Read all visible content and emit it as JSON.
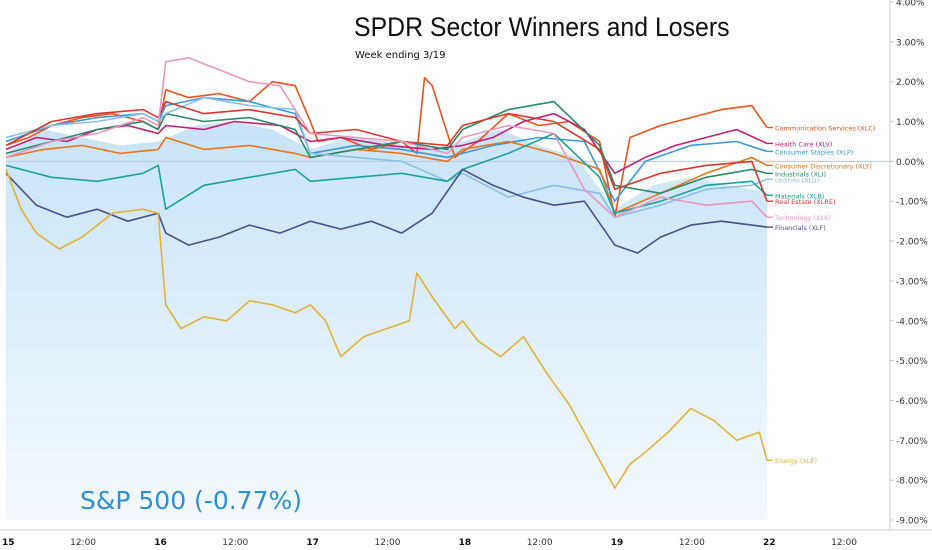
{
  "chart_data": {
    "type": "line",
    "title": "SPDR Sector Winners and Losers",
    "subtitle": "Week ending 3/19",
    "annotation": "S&P 500 (-0.77%)",
    "x_ticks": [
      "15",
      "12:00",
      "16",
      "12:00",
      "17",
      "12:00",
      "18",
      "12:00",
      "19",
      "12:00",
      "22",
      "12:00"
    ],
    "y_ticks": [
      "4.00%",
      "3.00%",
      "2.00%",
      "1.00%",
      "0.00%",
      "-1.00%",
      "-2.00%",
      "-3.00%",
      "-4.00%",
      "-5.00%",
      "-6.00%",
      "-7.00%",
      "-8.00%",
      "-9.00%"
    ],
    "ylim": [
      -9.0,
      4.0
    ],
    "x_range": [
      0,
      7
    ],
    "area_series": {
      "name": "S&P 500",
      "x": [
        0,
        0.25,
        0.5,
        0.75,
        1.0,
        1.25,
        1.5,
        1.75,
        2.0,
        2.25,
        2.5,
        2.75,
        3.0,
        3.25,
        3.5,
        3.75,
        4.0,
        4.25,
        4.5,
        4.75,
        5.0
      ],
      "values": [
        0.2,
        0.8,
        0.6,
        0.4,
        0.5,
        0.9,
        1.0,
        0.8,
        0.3,
        0.6,
        0.5,
        0.3,
        0.5,
        0.8,
        0.4,
        0.1,
        -1.2,
        -0.6,
        -0.4,
        -0.6,
        -0.77
      ],
      "color": "#9ccdf0"
    },
    "series": [
      {
        "name": "Communication Services (XLC)",
        "color": "#e8541e",
        "end": 0.85,
        "x": [
          0,
          0.15,
          0.3,
          0.5,
          0.7,
          0.9,
          1.0,
          1.05,
          1.2,
          1.4,
          1.6,
          1.75,
          1.9,
          2.0,
          2.05,
          2.2,
          2.4,
          2.6,
          2.7,
          2.75,
          2.8,
          2.95,
          3.1,
          3.3,
          3.5,
          3.7,
          3.9,
          4.0,
          4.1,
          4.3,
          4.5,
          4.7,
          4.9,
          5.0
        ],
        "values": [
          0.4,
          0.6,
          0.9,
          1.1,
          1.2,
          1.0,
          0.8,
          1.8,
          1.6,
          1.7,
          1.5,
          2.0,
          1.9,
          1.0,
          0.5,
          0.6,
          0.3,
          0.5,
          0.2,
          2.1,
          1.9,
          0.1,
          0.5,
          1.2,
          0.9,
          1.0,
          0.5,
          -1.4,
          0.6,
          0.9,
          1.1,
          1.3,
          1.4,
          0.85
        ]
      },
      {
        "name": "Health Care (XLV)",
        "color": "#c41e72",
        "end": 0.45,
        "x": [
          0,
          0.2,
          0.4,
          0.6,
          0.8,
          1.0,
          1.05,
          1.3,
          1.5,
          1.8,
          2.0,
          2.2,
          2.5,
          2.8,
          3.0,
          3.2,
          3.4,
          3.6,
          3.8,
          4.0,
          4.2,
          4.4,
          4.6,
          4.8,
          5.0
        ],
        "values": [
          0.3,
          0.6,
          0.5,
          0.8,
          0.9,
          0.7,
          0.9,
          0.8,
          1.0,
          0.9,
          0.5,
          0.6,
          0.4,
          0.3,
          0.4,
          0.6,
          1.0,
          1.2,
          0.8,
          -0.3,
          0.1,
          0.4,
          0.6,
          0.8,
          0.45
        ]
      },
      {
        "name": "Consumer Staples (XLP)",
        "color": "#3a9ad9",
        "end": 0.25,
        "x": [
          0,
          0.3,
          0.6,
          0.9,
          1.0,
          1.05,
          1.3,
          1.6,
          1.9,
          2.0,
          2.3,
          2.6,
          2.9,
          3.0,
          3.2,
          3.5,
          3.8,
          4.0,
          4.2,
          4.5,
          4.8,
          5.0
        ],
        "values": [
          0.5,
          0.9,
          1.1,
          1.2,
          1.0,
          1.4,
          1.6,
          1.5,
          1.2,
          0.2,
          0.4,
          0.3,
          0.1,
          0.2,
          0.4,
          0.6,
          0.5,
          -1.0,
          0.0,
          0.4,
          0.5,
          0.25
        ]
      },
      {
        "name": "Consumer Discretionary (XLY)",
        "color": "#e8741e",
        "end": -0.1,
        "x": [
          0,
          0.25,
          0.5,
          0.75,
          1.0,
          1.05,
          1.3,
          1.6,
          1.9,
          2.0,
          2.3,
          2.6,
          2.9,
          3.0,
          3.3,
          3.6,
          3.9,
          4.0,
          4.3,
          4.6,
          4.9,
          5.0
        ],
        "values": [
          0.1,
          0.3,
          0.4,
          0.2,
          0.3,
          0.6,
          0.3,
          0.4,
          0.2,
          0.1,
          0.3,
          0.2,
          0.0,
          0.3,
          0.5,
          0.2,
          -0.2,
          -1.3,
          -0.8,
          -0.3,
          0.1,
          -0.1
        ]
      },
      {
        "name": "Industrials (XLI)",
        "color": "#2a8a6a",
        "end": -0.3,
        "x": [
          0,
          0.3,
          0.6,
          0.9,
          1.0,
          1.05,
          1.3,
          1.6,
          1.9,
          2.0,
          2.3,
          2.6,
          2.9,
          3.0,
          3.3,
          3.6,
          3.9,
          4.0,
          4.3,
          4.6,
          4.9,
          5.0
        ],
        "values": [
          0.2,
          0.5,
          0.8,
          1.0,
          0.8,
          1.2,
          1.0,
          1.1,
          0.8,
          0.1,
          0.3,
          0.5,
          0.3,
          0.8,
          1.3,
          1.5,
          0.4,
          -0.6,
          -0.8,
          -0.4,
          -0.2,
          -0.3
        ]
      },
      {
        "name": "Utilities (XLU)",
        "color": "#8cc0e4",
        "end": -0.45,
        "x": [
          0,
          0.3,
          0.6,
          0.9,
          1.0,
          1.05,
          1.3,
          1.6,
          1.9,
          2.0,
          2.3,
          2.6,
          2.9,
          3.0,
          3.3,
          3.6,
          3.9,
          4.0,
          4.3,
          4.6,
          4.9,
          5.0
        ],
        "values": [
          0.6,
          0.9,
          1.0,
          1.2,
          1.0,
          1.2,
          1.6,
          1.4,
          1.3,
          0.2,
          0.1,
          0.0,
          -0.5,
          -0.3,
          -0.9,
          -0.6,
          -0.8,
          -1.4,
          -1.1,
          -0.7,
          -0.6,
          -0.45
        ]
      },
      {
        "name": "Materials (XLB)",
        "color": "#1aa39a",
        "end": -0.85,
        "x": [
          0,
          0.3,
          0.6,
          0.9,
          1.0,
          1.05,
          1.3,
          1.6,
          1.9,
          2.0,
          2.3,
          2.6,
          2.9,
          3.0,
          3.3,
          3.6,
          3.9,
          4.0,
          4.3,
          4.6,
          4.9,
          5.0
        ],
        "values": [
          -0.1,
          -0.4,
          -0.5,
          -0.3,
          -0.1,
          -1.2,
          -0.6,
          -0.4,
          -0.2,
          -0.5,
          -0.4,
          -0.3,
          -0.5,
          -0.2,
          0.2,
          0.7,
          -0.4,
          -1.3,
          -1.0,
          -0.6,
          -0.5,
          -0.85
        ]
      },
      {
        "name": "Real Estate (XLRE)",
        "color": "#d63a2e",
        "end": -1.0,
        "x": [
          0,
          0.3,
          0.6,
          0.9,
          1.0,
          1.05,
          1.3,
          1.6,
          1.9,
          2.0,
          2.3,
          2.6,
          2.9,
          3.0,
          3.3,
          3.6,
          3.9,
          4.0,
          4.3,
          4.6,
          4.9,
          5.0
        ],
        "values": [
          0.4,
          1.0,
          1.2,
          1.3,
          1.1,
          1.5,
          1.2,
          1.3,
          1.1,
          0.7,
          0.8,
          0.5,
          0.4,
          0.9,
          1.2,
          1.0,
          0.3,
          -0.7,
          -0.3,
          -0.1,
          0.0,
          -1.0
        ]
      },
      {
        "name": "Technology (XLK)",
        "color": "#e898c0",
        "end": -1.4,
        "x": [
          0,
          0.3,
          0.6,
          0.9,
          1.0,
          1.05,
          1.2,
          1.4,
          1.6,
          1.8,
          2.0,
          2.3,
          2.6,
          2.9,
          3.0,
          3.3,
          3.6,
          3.8,
          4.0,
          4.3,
          4.6,
          4.9,
          5.0
        ],
        "values": [
          0.1,
          0.5,
          0.7,
          1.1,
          0.9,
          2.5,
          2.6,
          2.3,
          2.0,
          1.9,
          0.7,
          0.6,
          0.5,
          0.2,
          0.6,
          0.9,
          0.7,
          -0.7,
          -1.4,
          -0.9,
          -1.1,
          -1.0,
          -1.4
        ]
      },
      {
        "name": "Financials (XLF)",
        "color": "#4a4f8c",
        "end": -1.65,
        "x": [
          0,
          0.2,
          0.4,
          0.6,
          0.8,
          1.0,
          1.05,
          1.2,
          1.4,
          1.6,
          1.8,
          2.0,
          2.2,
          2.4,
          2.6,
          2.8,
          3.0,
          3.2,
          3.4,
          3.6,
          3.8,
          4.0,
          4.15,
          4.3,
          4.5,
          4.7,
          4.9,
          5.0
        ],
        "values": [
          -0.3,
          -1.1,
          -1.4,
          -1.2,
          -1.5,
          -1.3,
          -1.8,
          -2.1,
          -1.9,
          -1.6,
          -1.8,
          -1.5,
          -1.7,
          -1.5,
          -1.8,
          -1.3,
          -0.2,
          -0.6,
          -0.9,
          -1.1,
          -1.0,
          -2.1,
          -2.3,
          -1.9,
          -1.6,
          -1.5,
          -1.6,
          -1.65
        ]
      },
      {
        "name": "Energy (XLE)",
        "color": "#e3b23c",
        "end": -7.5,
        "x": [
          0,
          0.1,
          0.2,
          0.35,
          0.5,
          0.7,
          0.9,
          1.0,
          1.05,
          1.15,
          1.3,
          1.45,
          1.6,
          1.75,
          1.9,
          2.0,
          2.1,
          2.2,
          2.35,
          2.5,
          2.65,
          2.7,
          2.8,
          2.95,
          3.0,
          3.1,
          3.25,
          3.4,
          3.55,
          3.7,
          3.8,
          3.9,
          4.0,
          4.1,
          4.2,
          4.35,
          4.5,
          4.65,
          4.8,
          4.95,
          5.0
        ],
        "values": [
          -0.2,
          -1.2,
          -1.8,
          -2.2,
          -1.9,
          -1.3,
          -1.2,
          -1.3,
          -3.6,
          -4.2,
          -3.9,
          -4.0,
          -3.5,
          -3.6,
          -3.8,
          -3.6,
          -4.0,
          -4.9,
          -4.4,
          -4.2,
          -4.0,
          -2.8,
          -3.4,
          -4.2,
          -4.0,
          -4.5,
          -4.9,
          -4.4,
          -5.3,
          -6.1,
          -6.8,
          -7.5,
          -8.2,
          -7.6,
          -7.3,
          -6.8,
          -6.2,
          -6.5,
          -7.0,
          -6.8,
          -7.5
        ]
      }
    ],
    "grid": false,
    "legend": "right, at line ends"
  }
}
